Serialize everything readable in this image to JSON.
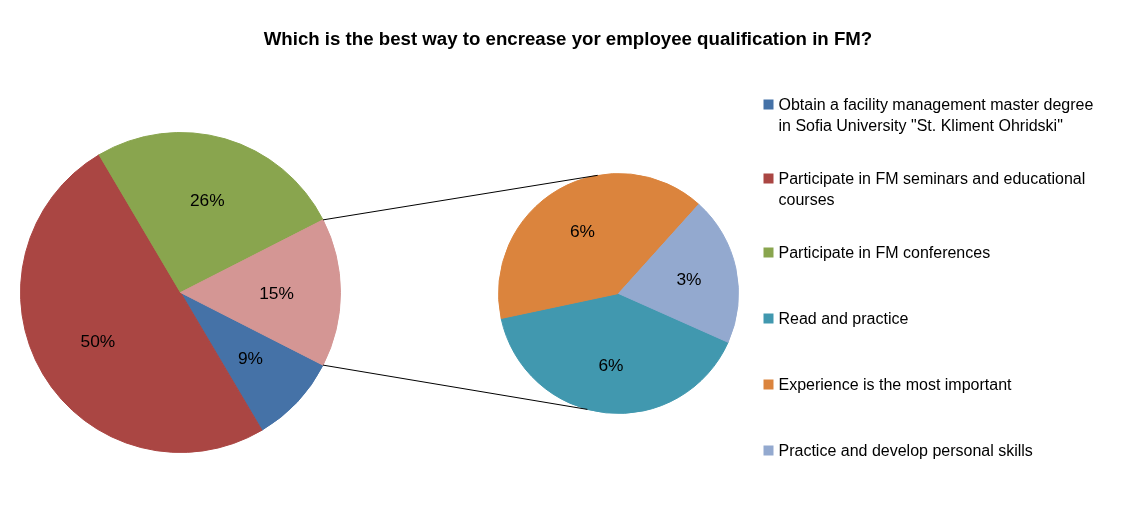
{
  "chart_data": [
    {
      "type": "pie",
      "title": "Which is the best way to encrease yor employee qualification in FM?",
      "categories": [
        "Obtain a facility management master degree in Sofia University \"St. Kliment Ohridski\"",
        "Participate in FM seminars and educational courses",
        "Participate in FM conferences",
        null
      ],
      "values": [
        9,
        50,
        26,
        15
      ],
      "colors": [
        "#4572a7",
        "#aa4643",
        "#89a54e",
        "#d49694"
      ],
      "value_labels": [
        "9%",
        "50%",
        "26%",
        "15%"
      ],
      "legend": "right"
    },
    {
      "type": "pie",
      "categories": [
        "Read and practice",
        "Experience is the most important",
        "Practice and develop personal skills"
      ],
      "values": [
        6,
        6,
        3
      ],
      "colors": [
        "#4198af",
        "#db843d",
        "#93a9cf"
      ],
      "value_labels": [
        "6%",
        "6%",
        "3%"
      ],
      "legend": "right"
    }
  ]
}
